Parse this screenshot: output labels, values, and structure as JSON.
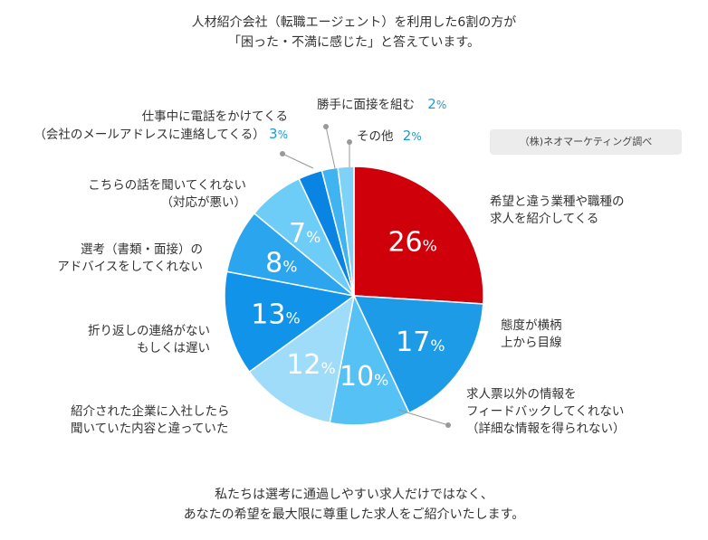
{
  "header": {
    "line1": "人材紹介会社（転職エージェント）を利用した6割の方が",
    "line2": "「困った・不満に感じた」と答えています。"
  },
  "source": "（株)ネオマーケティング調べ",
  "footer": {
    "line1": "私たちは選考に通過しやすい求人だけではなく、",
    "line2": "あなたの希望を最大限に尊重した求人をご紹介いたします。"
  },
  "chart_data": {
    "type": "pie",
    "unit": "%",
    "slices": [
      {
        "label_lines": [
          "希望と違う業種や職種の",
          "求人を紹介してくる"
        ],
        "value": 26,
        "color": "#d0000a"
      },
      {
        "label_lines": [
          "態度が横柄",
          "上から目線"
        ],
        "value": 17,
        "color": "#1e9be6"
      },
      {
        "label_lines": [
          "求人票以外の情報を",
          "フィードバックしてくれない",
          "（詳細な情報を得られない）"
        ],
        "value": 10,
        "color": "#55c1f5"
      },
      {
        "label_lines": [
          "紹介された企業に入社したら",
          "聞いていた内容と違っていた"
        ],
        "value": 12,
        "color": "#9fdcf9"
      },
      {
        "label_lines": [
          "折り返しの連絡がない",
          "もしくは遅い"
        ],
        "value": 13,
        "color": "#1193ea"
      },
      {
        "label_lines": [
          "選考（書類・面接）の",
          "アドバイスをしてくれない"
        ],
        "value": 8,
        "color": "#2ba6ee"
      },
      {
        "label_lines": [
          "こちらの話を聞いてくれない",
          "（対応が悪い）"
        ],
        "value": 7,
        "color": "#6dcdf6"
      },
      {
        "label_lines": [
          "仕事中に電話をかけてくる",
          "（会社のメールアドレスに連絡してくる）"
        ],
        "value": 3,
        "color": "#0a84e2"
      },
      {
        "label_lines": [
          "勝手に面接を組む"
        ],
        "value": 2,
        "color": "#3fb4f0"
      },
      {
        "label_lines": [
          "その他"
        ],
        "value": 2,
        "color": "#7fd2f7"
      }
    ]
  }
}
